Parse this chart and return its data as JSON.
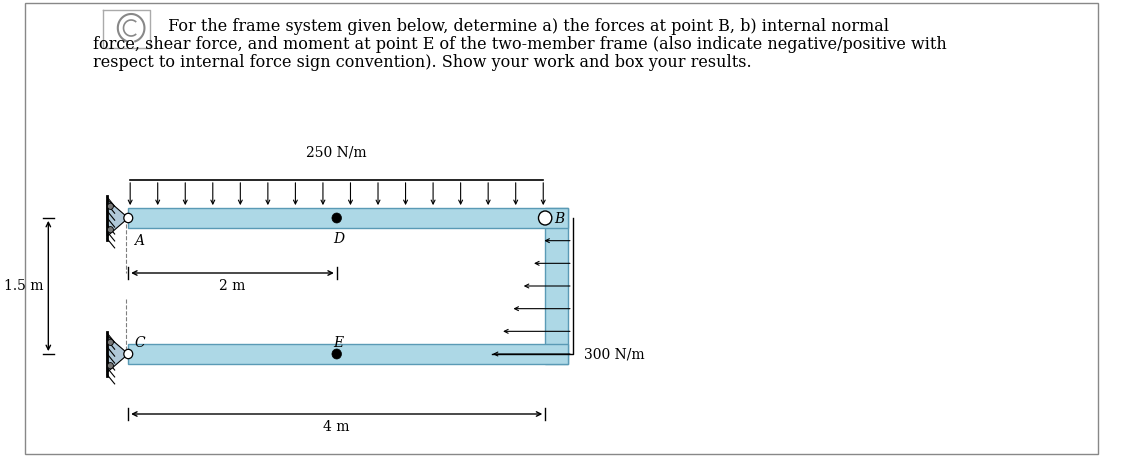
{
  "title_line1": " For the frame system given below, determine a) the forces at point B, b) internal normal",
  "title_line2": "force, shear force, and moment at point E of the two-member frame (also indicate negative/positive with",
  "title_line3": "respect to internal force sign convention). Show your work and box your results.",
  "bg_color": "#ffffff",
  "frame_fill": "#add8e6",
  "frame_edge": "#5a9ab5",
  "label_250": "250 N/m",
  "label_300": "300 N/m",
  "label_2m": "2 m",
  "label_15m": "1.5 m",
  "label_4m": "4 m",
  "label_A": "A",
  "label_B": "B",
  "label_C": "C",
  "label_D": "D",
  "label_E": "E",
  "title_fontsize": 11.5,
  "label_fontsize": 10
}
